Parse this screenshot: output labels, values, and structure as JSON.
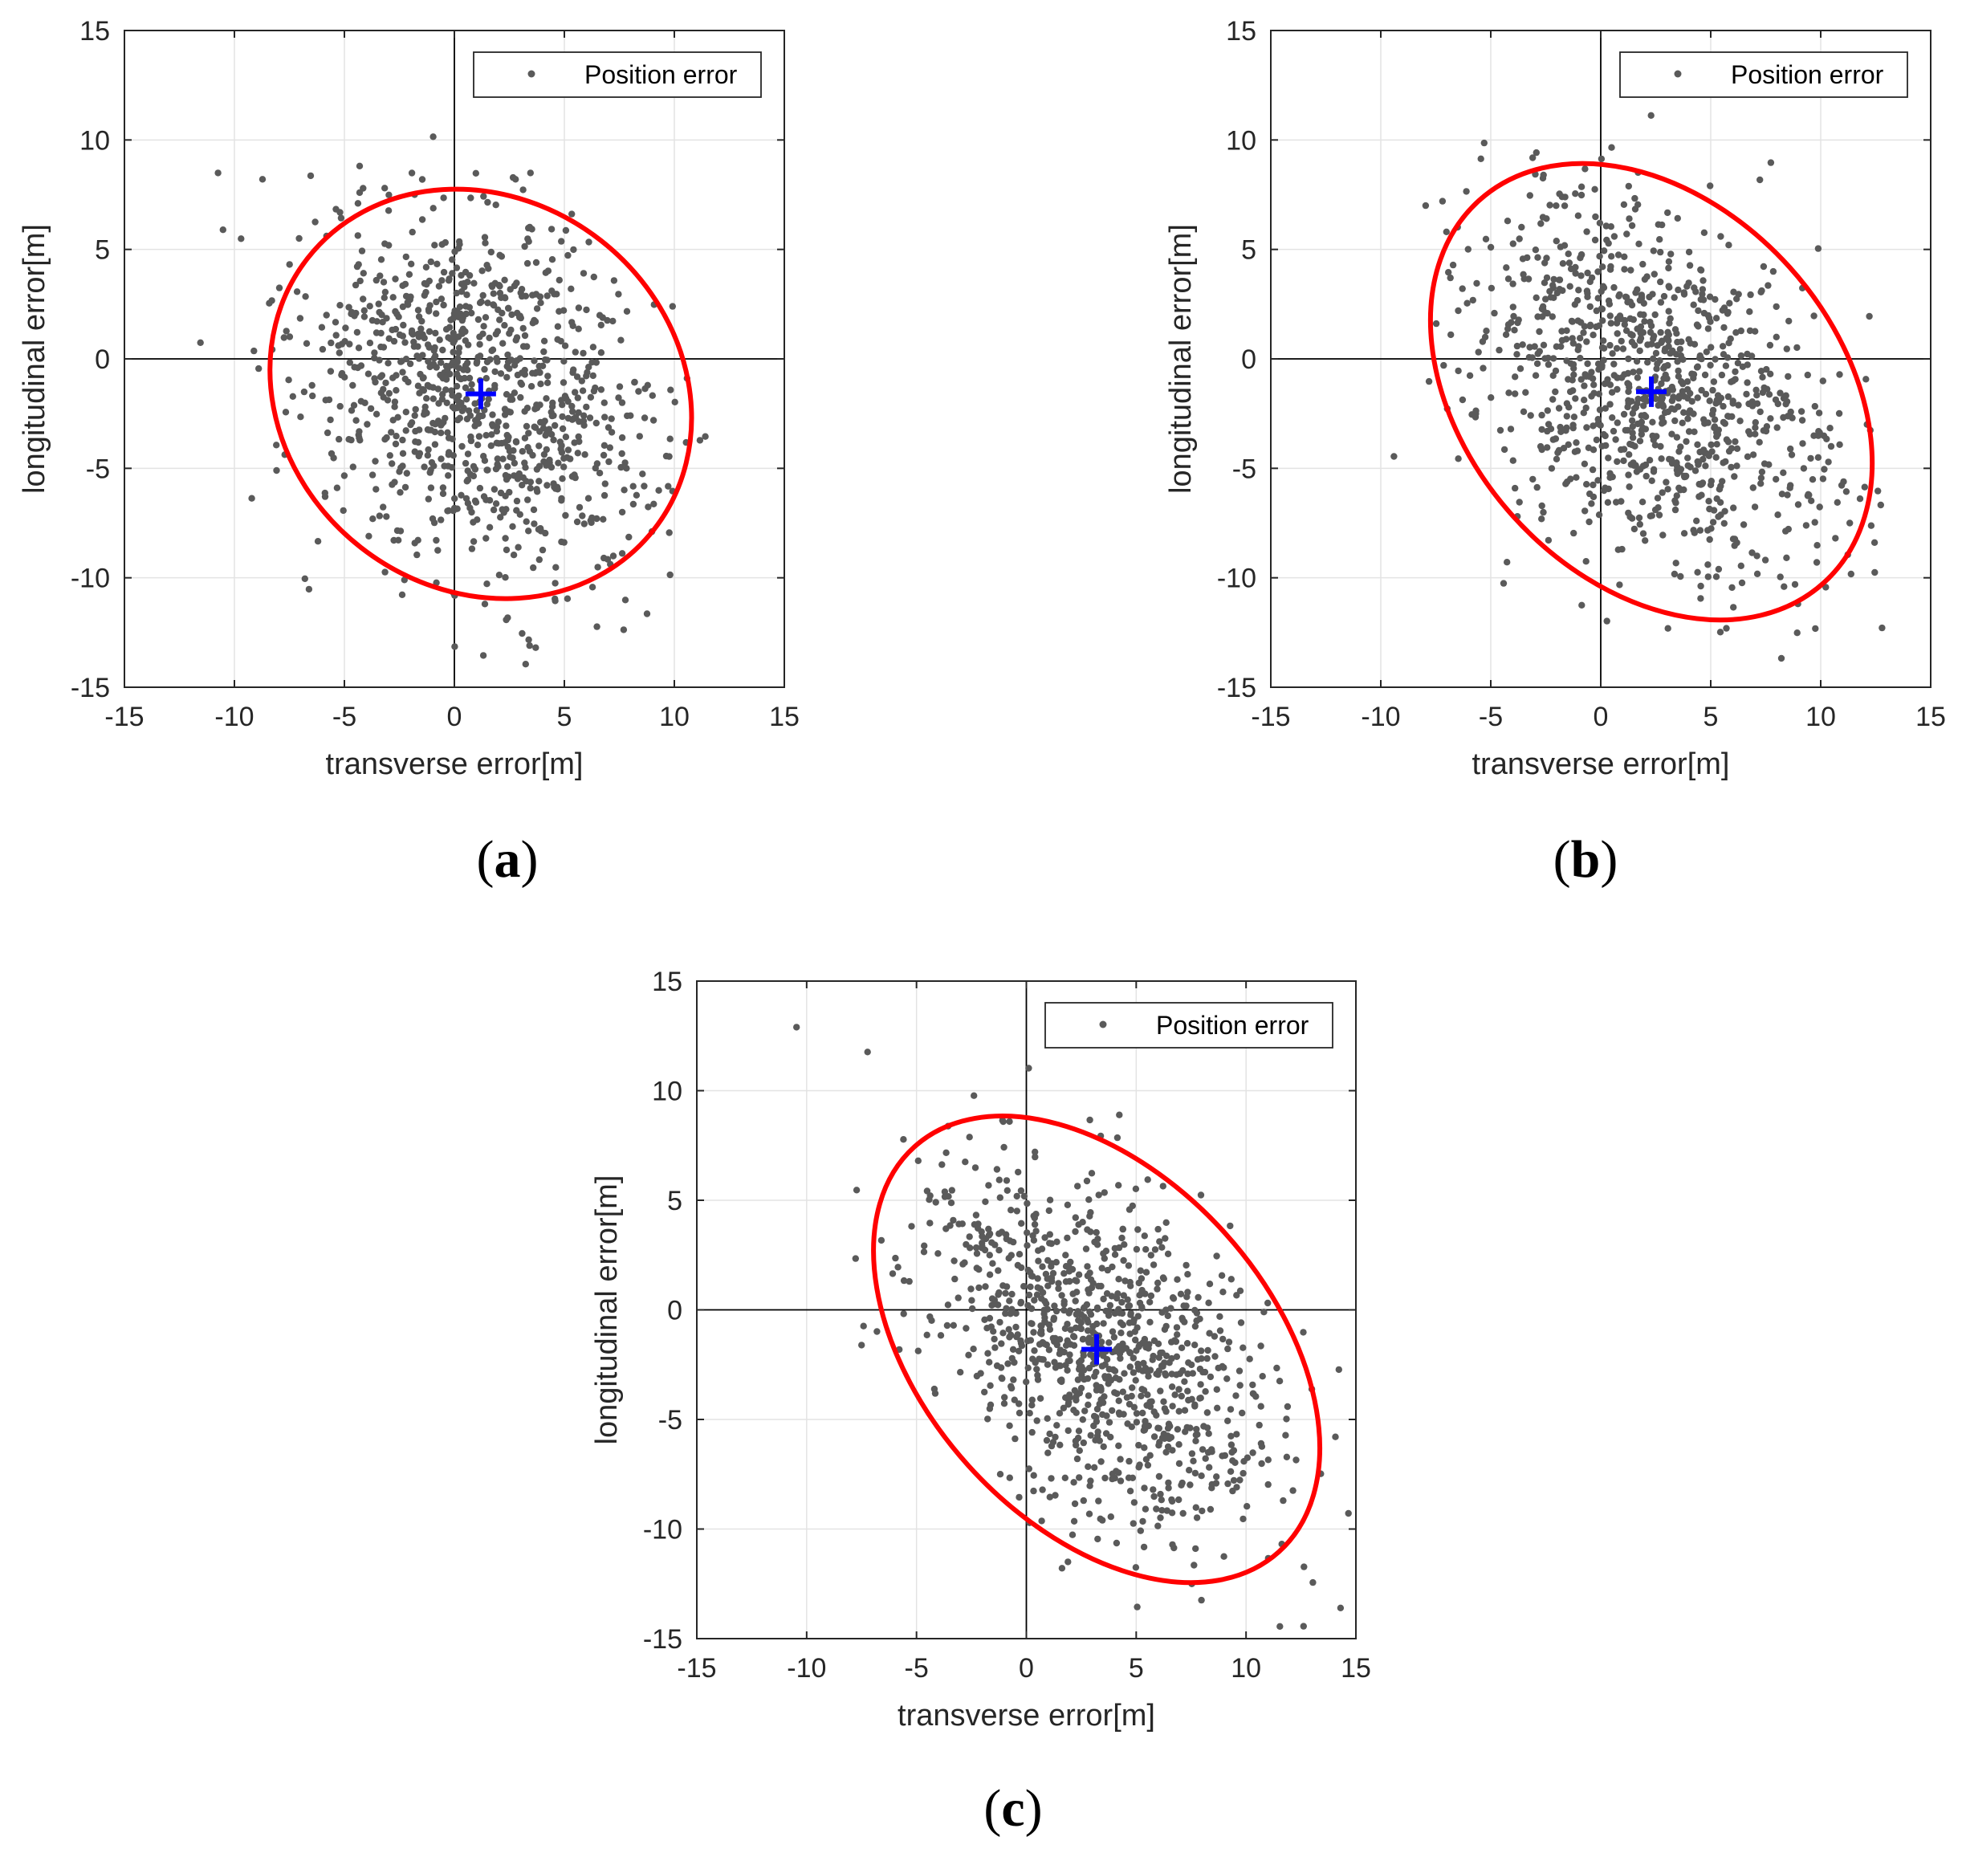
{
  "figure": {
    "colors": {
      "points": "#5a5a5a",
      "ellipse": "#ff0000",
      "center": "#0000ff",
      "grid": "#e3e3e3",
      "axis": "#262626",
      "zero_lines": "#000000"
    }
  },
  "chart_data": [
    {
      "type": "scatter",
      "panel_label": "a",
      "xlabel": "transverse error[m]",
      "ylabel": "longitudinal error[m]",
      "xlim": [
        -15,
        15
      ],
      "ylim": [
        -15,
        15
      ],
      "xticks": [
        "-15",
        "-10",
        "-5",
        "0",
        "5",
        "10",
        "15"
      ],
      "yticks": [
        "-15",
        "-10",
        "-5",
        "0",
        "5",
        "10",
        "15"
      ],
      "grid": true,
      "legend": {
        "label": "Position error",
        "location": "top-right"
      },
      "series": [
        {
          "name": "Position error",
          "marker": "dot",
          "count": 1000,
          "mean": [
            1.2,
            -1.5
          ],
          "std": [
            4.0,
            4.2
          ],
          "rho": -0.3
        }
      ],
      "ellipse": {
        "center": [
          1.2,
          -1.6
        ],
        "semi_major": 10.0,
        "semi_minor": 8.9,
        "angle_deg": -38
      },
      "center_marker": [
        1.2,
        -1.6
      ]
    },
    {
      "type": "scatter",
      "panel_label": "b",
      "xlabel": "transverse error[m]",
      "ylabel": "longitudinal error[m]",
      "xlim": [
        -15,
        15
      ],
      "ylim": [
        -15,
        15
      ],
      "xticks": [
        "-15",
        "-10",
        "-5",
        "0",
        "5",
        "10",
        "15"
      ],
      "yticks": [
        "-15",
        "-10",
        "-5",
        "0",
        "5",
        "10",
        "15"
      ],
      "grid": true,
      "legend": {
        "label": "Position error",
        "location": "top-right"
      },
      "series": [
        {
          "name": "Position error",
          "marker": "dot",
          "count": 1000,
          "mean": [
            2.3,
            -1.5
          ],
          "std": [
            4.1,
            4.3
          ],
          "rho": -0.4
        }
      ],
      "ellipse": {
        "center": [
          2.3,
          -1.5
        ],
        "semi_major": 11.7,
        "semi_minor": 8.5,
        "angle_deg": -48
      },
      "center_marker": [
        2.3,
        -1.5
      ]
    },
    {
      "type": "scatter",
      "panel_label": "c",
      "xlabel": "transverse error[m]",
      "ylabel": "longitudinal error[m]",
      "xlim": [
        -15,
        15
      ],
      "ylim": [
        -15,
        15
      ],
      "xticks": [
        "-15",
        "-10",
        "-5",
        "0",
        "5",
        "10",
        "15"
      ],
      "yticks": [
        "-15",
        "-10",
        "-5",
        "0",
        "5",
        "10",
        "15"
      ],
      "grid": true,
      "legend": {
        "label": "Position error",
        "location": "top-right"
      },
      "series": [
        {
          "name": "Position error",
          "marker": "dot",
          "count": 1000,
          "mean": [
            3.2,
            -1.8
          ],
          "std": [
            4.2,
            4.5
          ],
          "rho": -0.55
        }
      ],
      "ellipse": {
        "center": [
          3.2,
          -1.8
        ],
        "semi_major": 12.4,
        "semi_minor": 7.9,
        "angle_deg": -48
      },
      "center_marker": [
        3.2,
        -1.8
      ]
    }
  ]
}
